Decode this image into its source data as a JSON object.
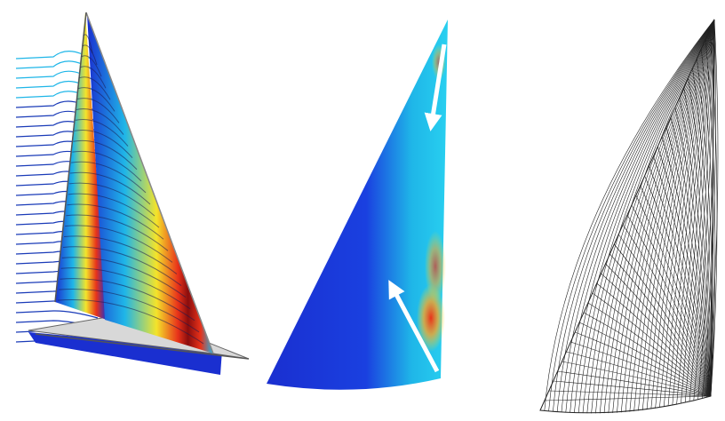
{
  "figure": {
    "panels": [
      {
        "id": "sail-flow-3d",
        "description_icon": "sailboat-streamlines-icon"
      },
      {
        "id": "sail-pressure-map",
        "description_icon": "sail-pressure-icon"
      },
      {
        "id": "sail-panel-mesh",
        "description_icon": "sail-mesh-icon"
      }
    ],
    "colors": {
      "low": "#1a2fd0",
      "mid_low": "#1fb6e8",
      "mid": "#f4e42a",
      "high": "#e8321a",
      "peak": "#8a0d0d",
      "hull": "#d8d8d8",
      "streamline": "#1a3bb8",
      "arrow": "#ffffff",
      "mesh": "#222222"
    }
  }
}
